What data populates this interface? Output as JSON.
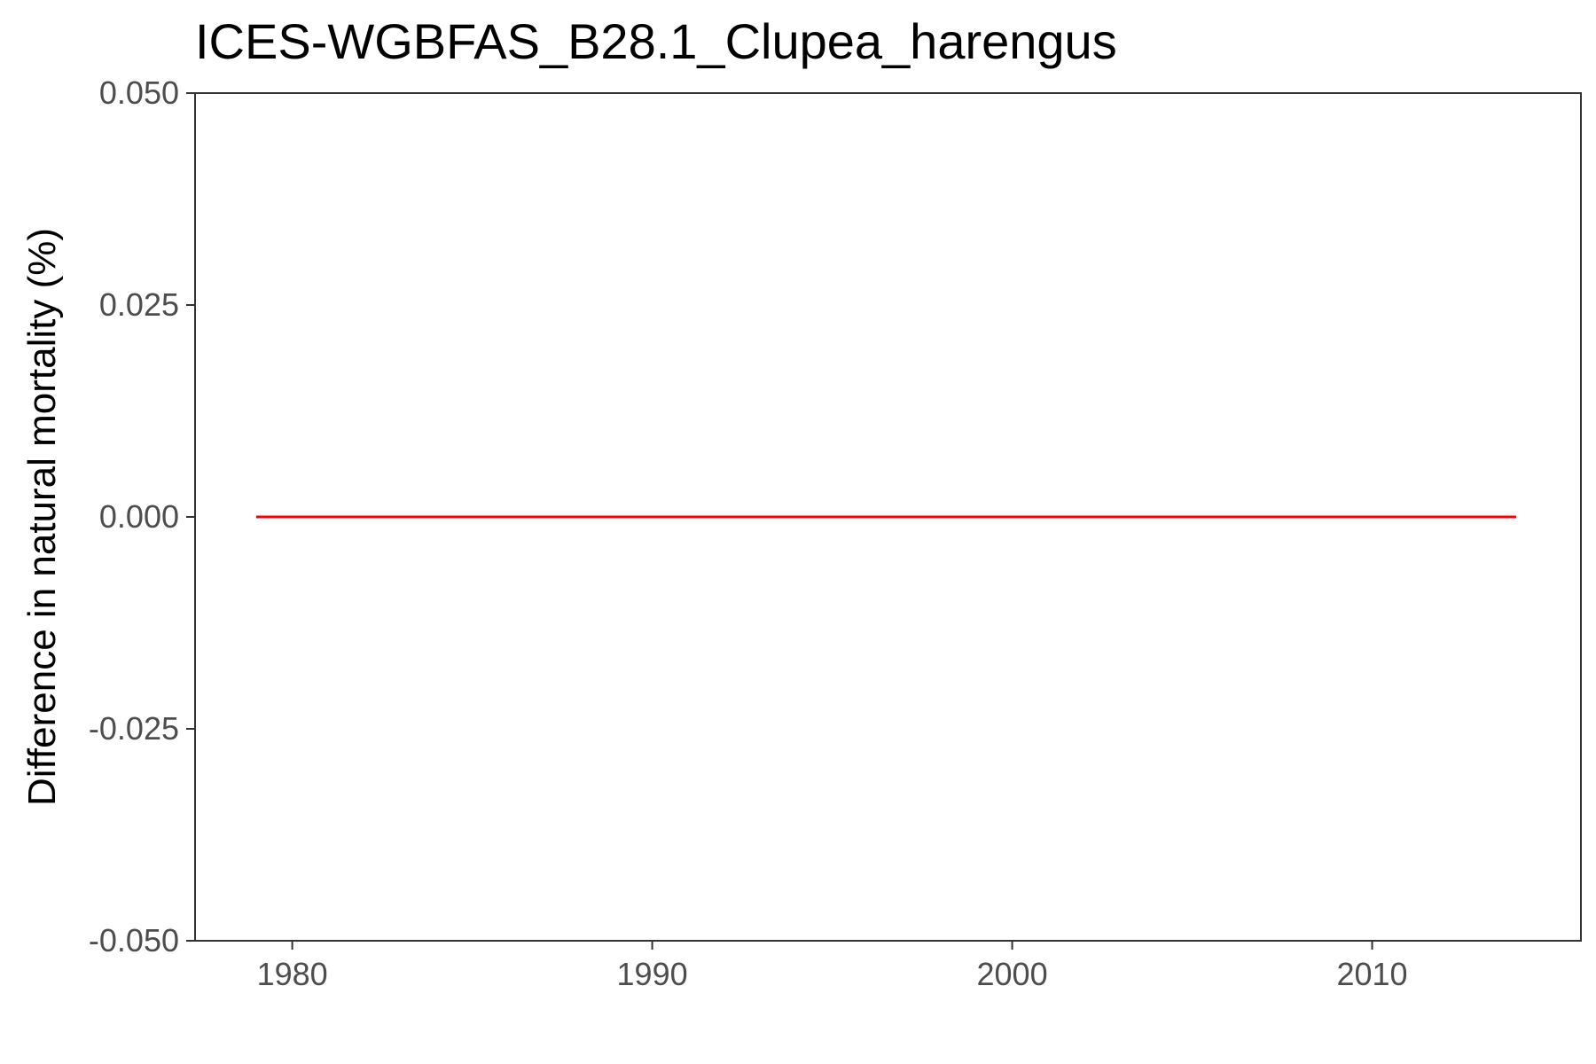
{
  "chart_data": {
    "type": "line",
    "title": "ICES-WGBFAS_B28.1_Clupea_harengus",
    "xlabel": "",
    "ylabel": "Difference in natural mortality (%)",
    "xlim": [
      1977.3,
      2015.8
    ],
    "ylim": [
      -0.05,
      0.05
    ],
    "x_ticks": [
      1980,
      1990,
      2000,
      2010
    ],
    "x_tick_labels": [
      "1980",
      "1990",
      "2000",
      "2010"
    ],
    "y_ticks": [
      -0.05,
      -0.025,
      0,
      0.025,
      0.05
    ],
    "y_tick_labels": [
      "-0.050",
      "-0.025",
      "0.000",
      "0.025",
      "0.050"
    ],
    "grid": false,
    "legend": "none",
    "series": [
      {
        "color": "#ff0000",
        "x": [
          1979,
          1980,
          1981,
          1982,
          1983,
          1984,
          1985,
          1986,
          1987,
          1988,
          1989,
          1990,
          1991,
          1992,
          1993,
          1994,
          1995,
          1996,
          1997,
          1998,
          1999,
          2000,
          2001,
          2002,
          2003,
          2004,
          2005,
          2006,
          2007,
          2008,
          2009,
          2010,
          2011,
          2012,
          2013,
          2014
        ],
        "y": [
          0,
          0,
          0,
          0,
          0,
          0,
          0,
          0,
          0,
          0,
          0,
          0,
          0,
          0,
          0,
          0,
          0,
          0,
          0,
          0,
          0,
          0,
          0,
          0,
          0,
          0,
          0,
          0,
          0,
          0,
          0,
          0,
          0,
          0,
          0,
          0
        ]
      }
    ]
  }
}
